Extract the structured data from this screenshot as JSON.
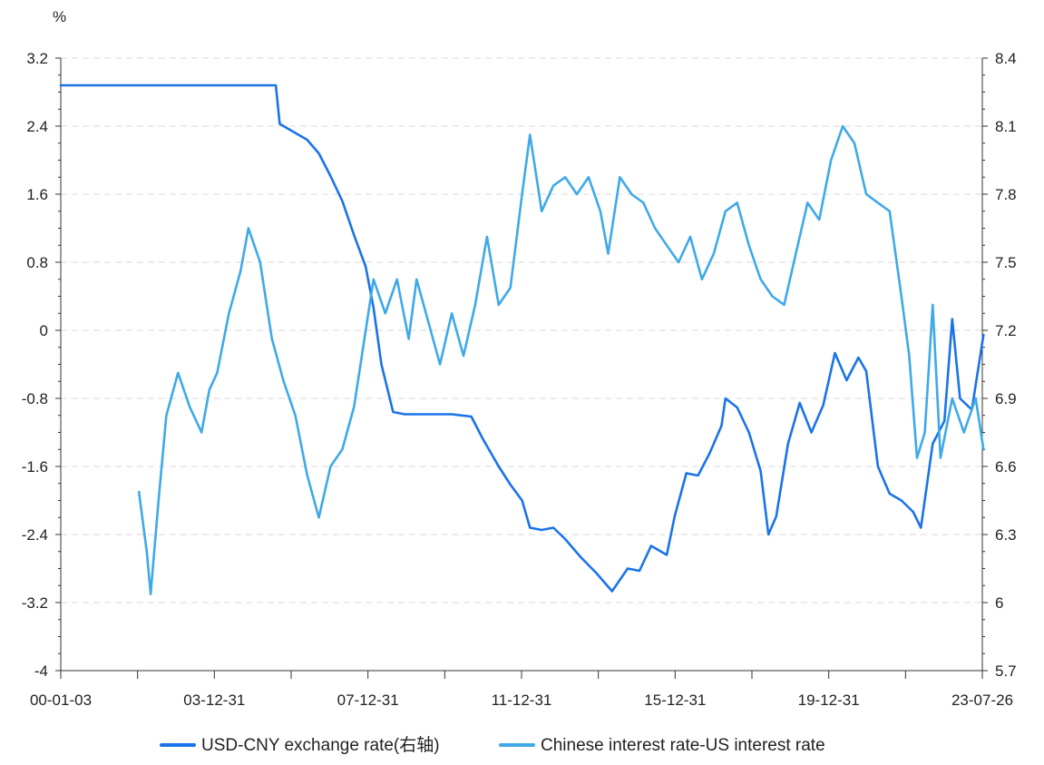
{
  "chart_data": {
    "type": "line",
    "unit_label": "%",
    "x_ticks": [
      "00-01-03",
      "03-12-31",
      "07-12-31",
      "11-12-31",
      "15-12-31",
      "19-12-31",
      "23-07-26"
    ],
    "y_left": {
      "range": [
        -4,
        3.2
      ],
      "ticks": [
        "3.2",
        "2.4",
        "1.6",
        "0.8",
        "0",
        "-0.8",
        "-1.6",
        "-2.4",
        "-3.2",
        "-4"
      ]
    },
    "y_right": {
      "range": [
        5.7,
        8.4
      ],
      "ticks": [
        "8.4",
        "8.1",
        "7.8",
        "7.5",
        "7.2",
        "6.9",
        "6.6",
        "6.3",
        "6",
        "5.7"
      ]
    },
    "grid": true,
    "legend_position": "bottom",
    "colors": {
      "usdcny": "#1a73e8",
      "spread": "#3fa9e8"
    },
    "series": [
      {
        "name": "USD-CNY exchange rate(右轴)",
        "axis": "right",
        "points": [
          [
            2000.0,
            8.28
          ],
          [
            2005.5,
            8.28
          ],
          [
            2005.6,
            8.11
          ],
          [
            2005.9,
            8.08
          ],
          [
            2006.3,
            8.04
          ],
          [
            2006.6,
            7.98
          ],
          [
            2006.9,
            7.88
          ],
          [
            2007.2,
            7.77
          ],
          [
            2007.5,
            7.62
          ],
          [
            2007.8,
            7.48
          ],
          [
            2008.0,
            7.3
          ],
          [
            2008.2,
            7.05
          ],
          [
            2008.5,
            6.84
          ],
          [
            2008.8,
            6.83
          ],
          [
            2009.3,
            6.83
          ],
          [
            2010.0,
            6.83
          ],
          [
            2010.5,
            6.82
          ],
          [
            2010.8,
            6.72
          ],
          [
            2011.2,
            6.6
          ],
          [
            2011.5,
            6.52
          ],
          [
            2011.8,
            6.45
          ],
          [
            2012.0,
            6.33
          ],
          [
            2012.3,
            6.32
          ],
          [
            2012.6,
            6.33
          ],
          [
            2012.9,
            6.28
          ],
          [
            2013.3,
            6.2
          ],
          [
            2013.7,
            6.13
          ],
          [
            2014.1,
            6.05
          ],
          [
            2014.5,
            6.15
          ],
          [
            2014.8,
            6.14
          ],
          [
            2015.1,
            6.25
          ],
          [
            2015.5,
            6.21
          ],
          [
            2015.7,
            6.38
          ],
          [
            2016.0,
            6.57
          ],
          [
            2016.3,
            6.56
          ],
          [
            2016.6,
            6.66
          ],
          [
            2016.9,
            6.78
          ],
          [
            2017.0,
            6.9
          ],
          [
            2017.3,
            6.86
          ],
          [
            2017.6,
            6.75
          ],
          [
            2017.9,
            6.58
          ],
          [
            2018.1,
            6.3
          ],
          [
            2018.3,
            6.38
          ],
          [
            2018.6,
            6.7
          ],
          [
            2018.9,
            6.88
          ],
          [
            2019.2,
            6.75
          ],
          [
            2019.5,
            6.87
          ],
          [
            2019.8,
            7.1
          ],
          [
            2020.1,
            6.98
          ],
          [
            2020.4,
            7.08
          ],
          [
            2020.6,
            7.02
          ],
          [
            2020.9,
            6.6
          ],
          [
            2021.2,
            6.48
          ],
          [
            2021.5,
            6.45
          ],
          [
            2021.8,
            6.4
          ],
          [
            2022.0,
            6.33
          ],
          [
            2022.3,
            6.7
          ],
          [
            2022.6,
            6.8
          ],
          [
            2022.8,
            7.25
          ],
          [
            2023.0,
            6.9
          ],
          [
            2023.3,
            6.85
          ],
          [
            2023.6,
            7.18
          ]
        ]
      },
      {
        "name": "Chinese interest rate-US interest rate",
        "axis": "left",
        "points": [
          [
            2002.0,
            -1.9
          ],
          [
            2002.2,
            -2.6
          ],
          [
            2002.3,
            -3.1
          ],
          [
            2002.5,
            -2.0
          ],
          [
            2002.7,
            -1.0
          ],
          [
            2003.0,
            -0.5
          ],
          [
            2003.3,
            -0.9
          ],
          [
            2003.6,
            -1.2
          ],
          [
            2003.8,
            -0.7
          ],
          [
            2004.0,
            -0.5
          ],
          [
            2004.3,
            0.2
          ],
          [
            2004.6,
            0.7
          ],
          [
            2004.8,
            1.2
          ],
          [
            2005.1,
            0.8
          ],
          [
            2005.4,
            -0.1
          ],
          [
            2005.7,
            -0.6
          ],
          [
            2006.0,
            -1.0
          ],
          [
            2006.3,
            -1.7
          ],
          [
            2006.6,
            -2.2
          ],
          [
            2006.9,
            -1.6
          ],
          [
            2007.2,
            -1.4
          ],
          [
            2007.5,
            -0.9
          ],
          [
            2007.8,
            0.0
          ],
          [
            2008.0,
            0.6
          ],
          [
            2008.3,
            0.2
          ],
          [
            2008.6,
            0.6
          ],
          [
            2008.9,
            -0.1
          ],
          [
            2009.1,
            0.6
          ],
          [
            2009.4,
            0.1
          ],
          [
            2009.7,
            -0.4
          ],
          [
            2010.0,
            0.2
          ],
          [
            2010.3,
            -0.3
          ],
          [
            2010.6,
            0.3
          ],
          [
            2010.9,
            1.1
          ],
          [
            2011.2,
            0.3
          ],
          [
            2011.5,
            0.5
          ],
          [
            2011.8,
            1.6
          ],
          [
            2012.0,
            2.3
          ],
          [
            2012.3,
            1.4
          ],
          [
            2012.6,
            1.7
          ],
          [
            2012.9,
            1.8
          ],
          [
            2013.2,
            1.6
          ],
          [
            2013.5,
            1.8
          ],
          [
            2013.8,
            1.4
          ],
          [
            2014.0,
            0.9
          ],
          [
            2014.3,
            1.8
          ],
          [
            2014.6,
            1.6
          ],
          [
            2014.9,
            1.5
          ],
          [
            2015.2,
            1.2
          ],
          [
            2015.5,
            1.0
          ],
          [
            2015.8,
            0.8
          ],
          [
            2016.1,
            1.1
          ],
          [
            2016.4,
            0.6
          ],
          [
            2016.7,
            0.9
          ],
          [
            2017.0,
            1.4
          ],
          [
            2017.3,
            1.5
          ],
          [
            2017.6,
            1.0
          ],
          [
            2017.9,
            0.6
          ],
          [
            2018.2,
            0.4
          ],
          [
            2018.5,
            0.3
          ],
          [
            2018.8,
            0.9
          ],
          [
            2019.1,
            1.5
          ],
          [
            2019.4,
            1.3
          ],
          [
            2019.7,
            2.0
          ],
          [
            2020.0,
            2.4
          ],
          [
            2020.3,
            2.2
          ],
          [
            2020.6,
            1.6
          ],
          [
            2020.9,
            1.5
          ],
          [
            2021.2,
            1.4
          ],
          [
            2021.5,
            0.4
          ],
          [
            2021.7,
            -0.3
          ],
          [
            2021.9,
            -1.5
          ],
          [
            2022.1,
            -1.2
          ],
          [
            2022.3,
            0.3
          ],
          [
            2022.5,
            -1.5
          ],
          [
            2022.8,
            -0.8
          ],
          [
            2023.1,
            -1.2
          ],
          [
            2023.4,
            -0.8
          ],
          [
            2023.6,
            -1.4
          ]
        ]
      }
    ]
  }
}
